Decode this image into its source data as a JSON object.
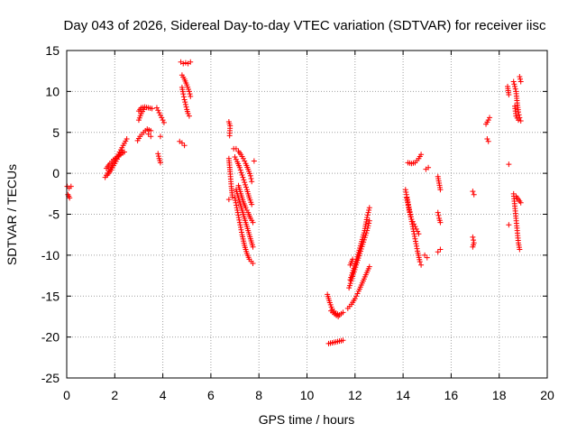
{
  "chart_data": {
    "type": "scatter",
    "title": "Day 043 of 2026, Sidereal Day-to-day VTEC variation (SDTVAR) for receiver iisc",
    "xlabel": "GPS time / hours",
    "ylabel": "SDTVAR / TECUs",
    "xlim": [
      0,
      20
    ],
    "ylim": [
      -25,
      15
    ],
    "xticks": [
      0,
      2,
      4,
      6,
      8,
      10,
      12,
      14,
      16,
      18,
      20
    ],
    "yticks": [
      -25,
      -20,
      -15,
      -10,
      -5,
      0,
      5,
      10,
      15
    ],
    "grid": true,
    "marker": "+",
    "color": "#ff0000",
    "series": [
      {
        "name": "SDTVAR",
        "tracks": [
          [
            [
              0.02,
              -1.6
            ],
            [
              0.1,
              -1.8
            ],
            [
              0.18,
              -1.6
            ]
          ],
          [
            [
              0.05,
              -2.6
            ],
            [
              0.12,
              -3.0
            ]
          ],
          [
            [
              1.6,
              -0.5
            ],
            [
              1.75,
              0.3
            ],
            [
              1.9,
              1.0
            ],
            [
              2.05,
              1.8
            ],
            [
              2.2,
              2.6
            ],
            [
              2.35,
              3.4
            ],
            [
              2.5,
              4.2
            ]
          ],
          [
            [
              1.65,
              0.6
            ],
            [
              1.8,
              1.2
            ],
            [
              1.95,
              1.7
            ],
            [
              2.1,
              2.0
            ],
            [
              2.25,
              2.3
            ],
            [
              2.4,
              2.6
            ]
          ],
          [
            [
              1.7,
              -0.2
            ],
            [
              1.85,
              0.4
            ],
            [
              2.0,
              1.2
            ],
            [
              2.15,
              2.0
            ],
            [
              2.3,
              2.8
            ]
          ],
          [
            [
              2.95,
              4.0
            ],
            [
              3.05,
              4.5
            ],
            [
              3.2,
              5.0
            ],
            [
              3.35,
              5.4
            ],
            [
              3.5,
              5.2
            ]
          ],
          [
            [
              3.0,
              7.6
            ],
            [
              3.1,
              8.0
            ],
            [
              3.25,
              8.1
            ],
            [
              3.4,
              8.0
            ],
            [
              3.55,
              7.9
            ]
          ],
          [
            [
              3.0,
              6.5
            ],
            [
              3.1,
              7.3
            ],
            [
              3.2,
              7.8
            ]
          ],
          [
            [
              3.4,
              4.8
            ],
            [
              3.5,
              4.5
            ]
          ],
          [
            [
              3.75,
              8.0
            ],
            [
              3.85,
              7.4
            ],
            [
              3.95,
              6.8
            ],
            [
              4.05,
              6.2
            ]
          ],
          [
            [
              3.8,
              2.4
            ],
            [
              3.85,
              1.8
            ],
            [
              3.9,
              1.3
            ]
          ],
          [
            [
              3.9,
              4.5
            ]
          ],
          [
            [
              4.7,
              3.9
            ],
            [
              4.8,
              3.7
            ],
            [
              4.9,
              3.4
            ]
          ],
          [
            [
              4.75,
              13.6
            ],
            [
              4.85,
              13.4
            ],
            [
              4.95,
              13.5
            ],
            [
              5.05,
              13.4
            ],
            [
              5.15,
              13.6
            ]
          ],
          [
            [
              4.8,
              10.5
            ],
            [
              4.85,
              9.7
            ],
            [
              4.9,
              9.0
            ],
            [
              4.95,
              8.4
            ],
            [
              5.0,
              7.8
            ],
            [
              5.05,
              7.3
            ],
            [
              5.1,
              7.0
            ]
          ],
          [
            [
              4.8,
              12.0
            ],
            [
              4.9,
              11.5
            ],
            [
              5.0,
              10.8
            ],
            [
              5.1,
              10.0
            ],
            [
              5.15,
              9.4
            ]
          ],
          [
            [
              6.75,
              6.3
            ],
            [
              6.8,
              5.8
            ],
            [
              6.78,
              4.6
            ]
          ],
          [
            [
              6.75,
              1.8
            ],
            [
              6.8,
              0.2
            ],
            [
              6.85,
              -1.6
            ],
            [
              6.9,
              -2.9
            ]
          ],
          [
            [
              6.75,
              -3.2
            ]
          ],
          [
            [
              6.95,
              3.0
            ],
            [
              7.05,
              3.0
            ],
            [
              7.15,
              2.7
            ],
            [
              7.25,
              2.3
            ],
            [
              7.35,
              1.8
            ],
            [
              7.45,
              1.2
            ],
            [
              7.55,
              0.5
            ],
            [
              7.65,
              -0.3
            ],
            [
              7.7,
              -1.0
            ]
          ],
          [
            [
              7.0,
              2.0
            ],
            [
              7.1,
              1.4
            ],
            [
              7.2,
              0.7
            ],
            [
              7.3,
              -0.2
            ],
            [
              7.4,
              -1.1
            ],
            [
              7.5,
              -2.0
            ],
            [
              7.6,
              -3.0
            ],
            [
              7.7,
              -3.8
            ]
          ],
          [
            [
              7.05,
              -2.0
            ],
            [
              7.15,
              -3.0
            ],
            [
              7.25,
              -4.0
            ],
            [
              7.35,
              -5.0
            ],
            [
              7.45,
              -6.0
            ],
            [
              7.55,
              -7.0
            ],
            [
              7.65,
              -8.0
            ],
            [
              7.75,
              -9.0
            ]
          ],
          [
            [
              7.0,
              -3.0
            ],
            [
              7.1,
              -4.5
            ],
            [
              7.2,
              -6.0
            ],
            [
              7.3,
              -7.5
            ],
            [
              7.4,
              -8.8
            ],
            [
              7.5,
              -9.8
            ],
            [
              7.6,
              -10.5
            ],
            [
              7.75,
              -11.0
            ]
          ],
          [
            [
              7.15,
              -1.5
            ],
            [
              7.25,
              -2.5
            ],
            [
              7.35,
              -3.5
            ],
            [
              7.45,
              -4.2
            ],
            [
              7.55,
              -4.8
            ],
            [
              7.65,
              -5.5
            ],
            [
              7.75,
              -6.0
            ]
          ],
          [
            [
              7.8,
              1.5
            ]
          ],
          [
            [
              10.85,
              -14.8
            ],
            [
              10.95,
              -15.8
            ],
            [
              11.05,
              -16.6
            ],
            [
              11.2,
              -17.1
            ],
            [
              11.35,
              -17.3
            ],
            [
              11.5,
              -17.0
            ]
          ],
          [
            [
              10.9,
              -20.8
            ],
            [
              11.05,
              -20.7
            ],
            [
              11.2,
              -20.6
            ],
            [
              11.35,
              -20.5
            ],
            [
              11.5,
              -20.4
            ]
          ],
          [
            [
              11.0,
              -16.8
            ],
            [
              11.15,
              -17.2
            ],
            [
              11.3,
              -17.5
            ]
          ],
          [
            [
              11.7,
              -16.5
            ],
            [
              11.85,
              -16.0
            ],
            [
              12.0,
              -15.3
            ],
            [
              12.15,
              -14.4
            ],
            [
              12.3,
              -13.4
            ],
            [
              12.45,
              -12.4
            ],
            [
              12.6,
              -11.4
            ]
          ],
          [
            [
              11.75,
              -14.0
            ],
            [
              11.9,
              -12.6
            ],
            [
              12.05,
              -11.2
            ],
            [
              12.2,
              -9.8
            ],
            [
              12.35,
              -8.4
            ],
            [
              12.5,
              -7.0
            ],
            [
              12.6,
              -5.8
            ]
          ],
          [
            [
              11.8,
              -13.0
            ],
            [
              11.95,
              -11.6
            ],
            [
              12.1,
              -10.2
            ],
            [
              12.25,
              -8.6
            ],
            [
              12.4,
              -7.0
            ],
            [
              12.5,
              -5.4
            ],
            [
              12.6,
              -4.2
            ]
          ],
          [
            [
              11.8,
              -11.2
            ],
            [
              11.9,
              -10.5
            ]
          ],
          [
            [
              14.1,
              -2.0
            ],
            [
              14.2,
              -3.5
            ],
            [
              14.3,
              -5.0
            ],
            [
              14.4,
              -6.5
            ],
            [
              14.5,
              -8.0
            ],
            [
              14.6,
              -9.5
            ],
            [
              14.7,
              -10.8
            ],
            [
              14.75,
              -11.2
            ]
          ],
          [
            [
              14.15,
              -3.0
            ],
            [
              14.25,
              -4.5
            ],
            [
              14.35,
              -5.6
            ],
            [
              14.45,
              -6.2
            ],
            [
              14.55,
              -6.8
            ],
            [
              14.65,
              -7.4
            ]
          ],
          [
            [
              14.2,
              1.3
            ],
            [
              14.35,
              1.2
            ],
            [
              14.5,
              1.3
            ],
            [
              14.65,
              1.8
            ],
            [
              14.75,
              2.3
            ]
          ],
          [
            [
              14.95,
              0.5
            ],
            [
              15.05,
              0.7
            ]
          ],
          [
            [
              14.9,
              -10.0
            ],
            [
              15.0,
              -10.3
            ]
          ],
          [
            [
              15.45,
              -0.4
            ],
            [
              15.5,
              -1.2
            ],
            [
              15.55,
              -2.0
            ]
          ],
          [
            [
              15.45,
              -4.8
            ],
            [
              15.5,
              -5.5
            ],
            [
              15.55,
              -6.0
            ]
          ],
          [
            [
              15.45,
              -9.6
            ],
            [
              15.55,
              -9.3
            ]
          ],
          [
            [
              16.9,
              -2.2
            ],
            [
              16.95,
              -2.6
            ]
          ],
          [
            [
              16.9,
              -7.8
            ],
            [
              16.95,
              -8.5
            ],
            [
              16.9,
              -9.0
            ]
          ],
          [
            [
              17.45,
              6.0
            ],
            [
              17.55,
              6.5
            ],
            [
              17.6,
              6.8
            ]
          ],
          [
            [
              17.5,
              4.2
            ],
            [
              17.55,
              3.9
            ]
          ],
          [
            [
              18.35,
              10.6
            ],
            [
              18.4,
              9.6
            ]
          ],
          [
            [
              18.4,
              1.1
            ]
          ],
          [
            [
              18.4,
              -6.3
            ]
          ],
          [
            [
              18.6,
              11.2
            ],
            [
              18.7,
              10.0
            ],
            [
              18.75,
              8.6
            ],
            [
              18.8,
              7.5
            ],
            [
              18.85,
              6.8
            ],
            [
              18.9,
              6.4
            ]
          ],
          [
            [
              18.65,
              8.2
            ],
            [
              18.7,
              7.0
            ],
            [
              18.8,
              6.5
            ]
          ],
          [
            [
              18.6,
              -2.5
            ],
            [
              18.65,
              -4.0
            ],
            [
              18.7,
              -5.5
            ],
            [
              18.75,
              -7.0
            ],
            [
              18.8,
              -8.5
            ],
            [
              18.85,
              -9.3
            ]
          ],
          [
            [
              18.7,
              -2.8
            ],
            [
              18.8,
              -3.2
            ],
            [
              18.9,
              -3.6
            ]
          ],
          [
            [
              18.85,
              11.8
            ],
            [
              18.9,
              11.2
            ]
          ]
        ]
      }
    ]
  }
}
